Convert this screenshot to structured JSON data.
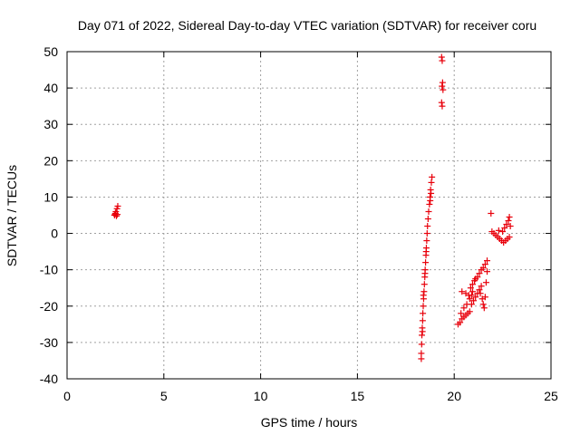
{
  "chart_data": {
    "type": "scatter",
    "title": "Day 071 of 2022, Sidereal Day-to-day VTEC variation (SDTVAR) for receiver coru",
    "xlabel": "GPS time / hours",
    "ylabel": "SDTVAR / TECUs",
    "xlim": [
      0,
      25
    ],
    "ylim": [
      -40,
      50
    ],
    "x_ticks": [
      0,
      5,
      10,
      15,
      20,
      25
    ],
    "y_ticks": [
      -40,
      -30,
      -20,
      -10,
      0,
      10,
      20,
      30,
      40,
      50
    ],
    "x_tick_labels": [
      "0",
      "5",
      "10",
      "15",
      "20",
      "25"
    ],
    "y_tick_labels": [
      "-40",
      "-30",
      "-20",
      "-10",
      "0",
      "10",
      "20",
      "30",
      "40",
      "50"
    ],
    "grid": true,
    "marker": "+",
    "color": "#e8000b",
    "series": [
      {
        "points": [
          [
            2.45,
            5.0
          ],
          [
            2.5,
            5.5
          ],
          [
            2.55,
            4.8
          ],
          [
            2.6,
            5.2
          ],
          [
            2.52,
            6.0
          ],
          [
            2.58,
            6.8
          ],
          [
            2.62,
            7.5
          ],
          [
            2.48,
            5.3
          ],
          [
            18.3,
            -34.5
          ],
          [
            18.3,
            -33.0
          ],
          [
            18.32,
            -30.5
          ],
          [
            18.33,
            -28.0
          ],
          [
            18.35,
            -26.0
          ],
          [
            18.37,
            -24.0
          ],
          [
            18.38,
            -22.0
          ],
          [
            18.4,
            -20.0
          ],
          [
            18.42,
            -18.0
          ],
          [
            18.44,
            -16.0
          ],
          [
            18.46,
            -14.0
          ],
          [
            18.48,
            -12.0
          ],
          [
            18.5,
            -10.0
          ],
          [
            18.52,
            -8.0
          ],
          [
            18.54,
            -6.0
          ],
          [
            18.56,
            -4.0
          ],
          [
            18.58,
            -2.0
          ],
          [
            18.6,
            0.0
          ],
          [
            18.62,
            2.0
          ],
          [
            18.65,
            4.0
          ],
          [
            18.68,
            6.0
          ],
          [
            18.72,
            8.0
          ],
          [
            18.75,
            10.0
          ],
          [
            18.78,
            12.0
          ],
          [
            18.82,
            14.0
          ],
          [
            18.85,
            15.5
          ],
          [
            18.8,
            11.0
          ],
          [
            18.76,
            9.0
          ],
          [
            18.36,
            -27.0
          ],
          [
            18.41,
            -17.0
          ],
          [
            18.49,
            -11.0
          ],
          [
            18.55,
            -5.0
          ],
          [
            19.35,
            48.5
          ],
          [
            19.38,
            47.5
          ],
          [
            19.4,
            41.5
          ],
          [
            19.37,
            40.5
          ],
          [
            19.42,
            39.5
          ],
          [
            19.35,
            36.0
          ],
          [
            19.38,
            35.0
          ],
          [
            20.2,
            -25.0
          ],
          [
            20.3,
            -24.5
          ],
          [
            20.4,
            -23.5
          ],
          [
            20.5,
            -23.0
          ],
          [
            20.6,
            -22.5
          ],
          [
            20.7,
            -22.0
          ],
          [
            20.8,
            -21.5
          ],
          [
            20.35,
            -22.0
          ],
          [
            20.5,
            -20.5
          ],
          [
            20.65,
            -19.5
          ],
          [
            20.8,
            -18.0
          ],
          [
            20.9,
            -17.0
          ],
          [
            20.95,
            -16.0
          ],
          [
            20.4,
            -16.0
          ],
          [
            20.6,
            -16.5
          ],
          [
            20.75,
            -17.0
          ],
          [
            20.85,
            -15.0
          ],
          [
            20.95,
            -14.0
          ],
          [
            21.05,
            -13.0
          ],
          [
            20.9,
            -19.5
          ],
          [
            21.0,
            -18.5
          ],
          [
            21.1,
            -17.5
          ],
          [
            21.2,
            -16.5
          ],
          [
            21.3,
            -15.5
          ],
          [
            21.4,
            -14.5
          ],
          [
            21.1,
            -12.5
          ],
          [
            21.2,
            -12.0
          ],
          [
            21.3,
            -11.0
          ],
          [
            21.4,
            -10.0
          ],
          [
            21.5,
            -9.5
          ],
          [
            21.6,
            -8.5
          ],
          [
            21.7,
            -7.5
          ],
          [
            21.35,
            -16.5
          ],
          [
            21.45,
            -18.0
          ],
          [
            21.5,
            -19.5
          ],
          [
            21.55,
            -20.5
          ],
          [
            21.6,
            -17.5
          ],
          [
            21.65,
            -13.5
          ],
          [
            21.7,
            -10.5
          ],
          [
            21.9,
            5.5
          ],
          [
            21.95,
            0.5
          ],
          [
            22.05,
            0.0
          ],
          [
            22.15,
            -0.5
          ],
          [
            22.25,
            -1.0
          ],
          [
            22.35,
            -1.5
          ],
          [
            22.45,
            -2.0
          ],
          [
            22.55,
            -2.5
          ],
          [
            22.65,
            -2.0
          ],
          [
            22.75,
            -1.5
          ],
          [
            22.85,
            -1.0
          ],
          [
            22.5,
            0.5
          ],
          [
            22.6,
            1.5
          ],
          [
            22.7,
            2.5
          ],
          [
            22.8,
            3.5
          ],
          [
            22.85,
            4.5
          ],
          [
            22.9,
            2.0
          ],
          [
            22.3,
            0.8
          ]
        ]
      }
    ]
  }
}
